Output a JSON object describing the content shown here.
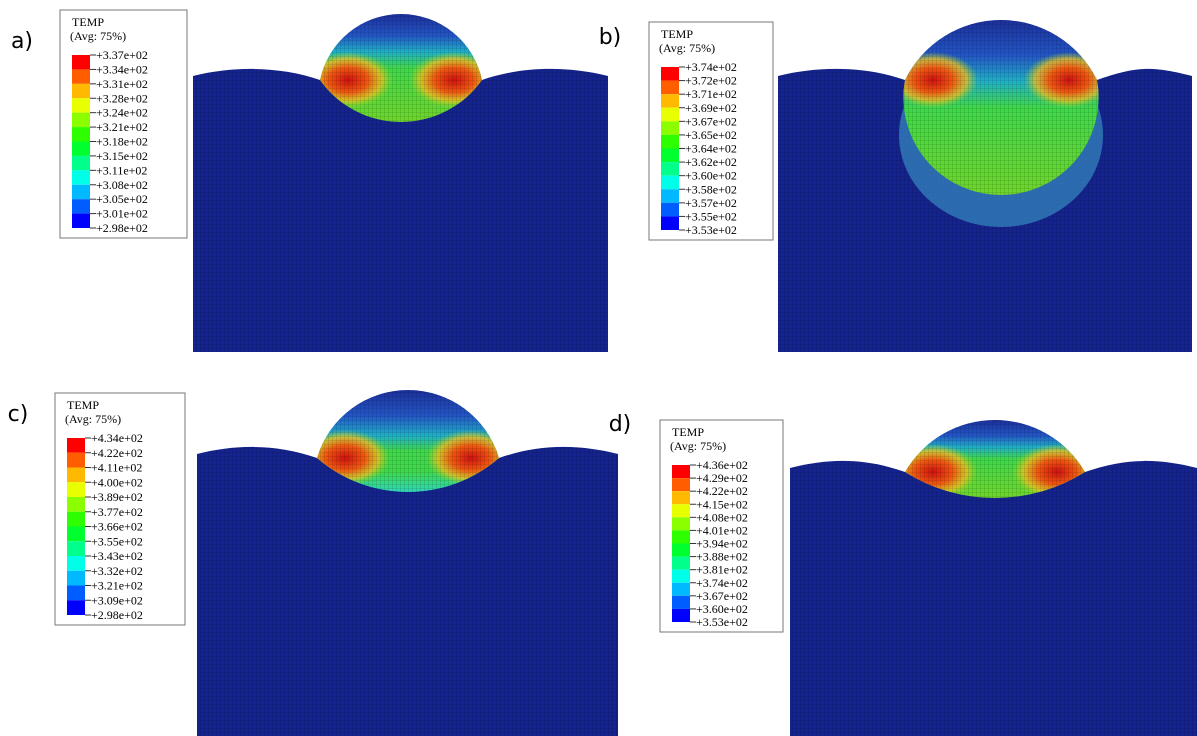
{
  "panels": [
    {
      "label": "a)",
      "legend": {
        "title": "TEMP",
        "subtitle": "(Avg: 75%)",
        "values": [
          "+3.37e+02",
          "+3.34e+02",
          "+3.31e+02",
          "+3.28e+02",
          "+3.24e+02",
          "+3.21e+02",
          "+3.18e+02",
          "+3.15e+02",
          "+3.11e+02",
          "+3.08e+02",
          "+3.05e+02",
          "+3.01e+02",
          "+2.98e+02"
        ]
      }
    },
    {
      "label": "b)",
      "legend": {
        "title": "TEMP",
        "subtitle": "(Avg: 75%)",
        "values": [
          "+3.74e+02",
          "+3.72e+02",
          "+3.71e+02",
          "+3.69e+02",
          "+3.67e+02",
          "+3.65e+02",
          "+3.64e+02",
          "+3.62e+02",
          "+3.60e+02",
          "+3.58e+02",
          "+3.57e+02",
          "+3.55e+02",
          "+3.53e+02"
        ]
      }
    },
    {
      "label": "c)",
      "legend": {
        "title": "TEMP",
        "subtitle": "(Avg: 75%)",
        "values": [
          "+4.34e+02",
          "+4.22e+02",
          "+4.11e+02",
          "+4.00e+02",
          "+3.89e+02",
          "+3.77e+02",
          "+3.66e+02",
          "+3.55e+02",
          "+3.43e+02",
          "+3.32e+02",
          "+3.21e+02",
          "+3.09e+02",
          "+2.98e+02"
        ]
      }
    },
    {
      "label": "d)",
      "legend": {
        "title": "TEMP",
        "subtitle": "(Avg: 75%)",
        "values": [
          "+4.36e+02",
          "+4.29e+02",
          "+4.22e+02",
          "+4.15e+02",
          "+4.08e+02",
          "+4.01e+02",
          "+3.94e+02",
          "+3.88e+02",
          "+3.81e+02",
          "+3.74e+02",
          "+3.67e+02",
          "+3.60e+02",
          "+3.53e+02"
        ]
      }
    }
  ]
}
